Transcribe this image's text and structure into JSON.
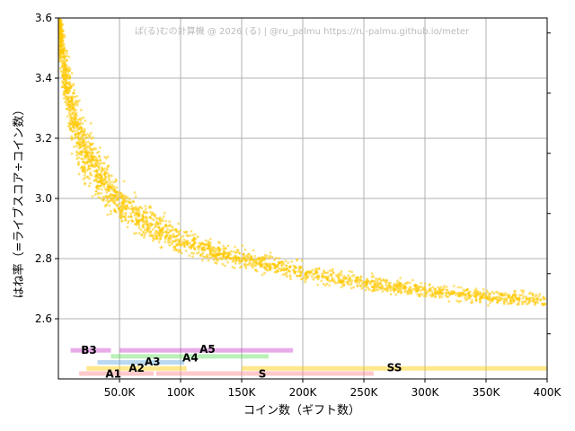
{
  "watermark": "ぱ(る)むの計算機 @ 2026 (る) | @ru_palmu  https://ru-palmu.github.io/meter",
  "chart_data": {
    "type": "scatter",
    "xlabel": "コイン数（ギフト数）",
    "ylabel": "はね率（=ライブスコア÷コイン数）",
    "xlim": [
      0,
      400000
    ],
    "ylim": [
      2.4,
      3.6
    ],
    "x_ticks": [
      {
        "value": 50000,
        "label": "50.0K"
      },
      {
        "value": 100000,
        "label": "100K"
      },
      {
        "value": 150000,
        "label": "150K"
      },
      {
        "value": 200000,
        "label": "200K"
      },
      {
        "value": 250000,
        "label": "250K"
      },
      {
        "value": 300000,
        "label": "300K"
      },
      {
        "value": 350000,
        "label": "350K"
      },
      {
        "value": 400000,
        "label": "400K"
      }
    ],
    "y_ticks": [
      {
        "value": 2.6,
        "label": "2.6"
      },
      {
        "value": 2.8,
        "label": "2.8"
      },
      {
        "value": 3.0,
        "label": "3.0"
      },
      {
        "value": 3.2,
        "label": "3.2"
      },
      {
        "value": 3.4,
        "label": "3.4"
      },
      {
        "value": 3.6,
        "label": "3.6"
      }
    ],
    "right_ticks": [
      3.55,
      3.35,
      3.15,
      2.95,
      2.75,
      2.55
    ],
    "grid": true,
    "point_color": "#ffc800",
    "trend": [
      [
        1000,
        3.6
      ],
      [
        5000,
        3.42
      ],
      [
        10000,
        3.3
      ],
      [
        20000,
        3.17
      ],
      [
        30000,
        3.1
      ],
      [
        50000,
        2.99
      ],
      [
        70000,
        2.92
      ],
      [
        100000,
        2.86
      ],
      [
        130000,
        2.82
      ],
      [
        160000,
        2.79
      ],
      [
        200000,
        2.755
      ],
      [
        250000,
        2.72
      ],
      [
        300000,
        2.695
      ],
      [
        350000,
        2.675
      ],
      [
        400000,
        2.66
      ]
    ],
    "bands": [
      {
        "name": "B3",
        "x": [
          10000,
          43000
        ],
        "y": 2.495,
        "color": "#cc44cc"
      },
      {
        "name": "A5",
        "x": [
          50000,
          192000
        ],
        "y": 2.495,
        "color": "#cc44cc"
      },
      {
        "name": "A4",
        "x": [
          43000,
          172000
        ],
        "y": 2.475,
        "color": "#66dd66"
      },
      {
        "name": "A3",
        "x": [
          32000,
          103000
        ],
        "y": 2.455,
        "color": "#66aadd"
      },
      {
        "name": "A2",
        "x": [
          23000,
          105000
        ],
        "y": 2.435,
        "color": "#ffcc00"
      },
      {
        "name": "SS",
        "x": [
          150000,
          400000
        ],
        "y": 2.435,
        "color": "#ffcc00"
      },
      {
        "name": "A1",
        "x": [
          17000,
          78000
        ],
        "y": 2.418,
        "color": "#ff8888"
      },
      {
        "name": "S",
        "x": [
          80000,
          258000
        ],
        "y": 2.418,
        "color": "#ff8888"
      }
    ],
    "band_labels": [
      {
        "name": "B3",
        "x": 25000,
        "y": 2.495
      },
      {
        "name": "A5",
        "x": 122000,
        "y": 2.499
      },
      {
        "name": "A4",
        "x": 108000,
        "y": 2.47
      },
      {
        "name": "A3",
        "x": 77000,
        "y": 2.457
      },
      {
        "name": "A2",
        "x": 64000,
        "y": 2.436
      },
      {
        "name": "SS",
        "x": 275000,
        "y": 2.437
      },
      {
        "name": "A1",
        "x": 45000,
        "y": 2.417
      },
      {
        "name": "S",
        "x": 167000,
        "y": 2.417
      }
    ]
  }
}
